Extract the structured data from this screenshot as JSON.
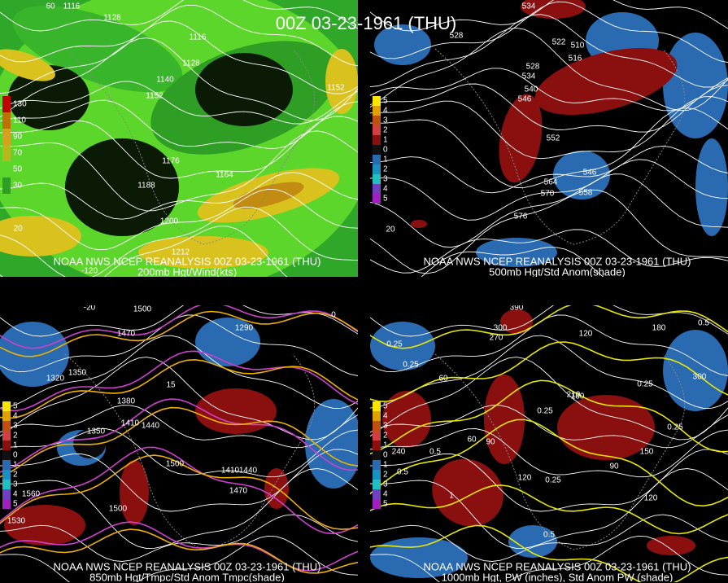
{
  "title": "00Z 03-23-1961 (THU)",
  "panels": [
    {
      "source": "NOAA NWS NCEP REANALYSIS 00Z 03-23-1961 (THU)",
      "caption": "200mb Hgt/Wind(kts)",
      "legend": [
        "130",
        "110",
        "90",
        "70",
        "50",
        "30"
      ],
      "labels": [
        "60",
        "1116",
        "1128",
        "1116",
        "1128",
        "1140",
        "1152",
        "1152",
        "1176",
        "1164",
        "1188",
        "1200",
        "1212",
        "20",
        "-120"
      ]
    },
    {
      "source": "NOAA NWS NCEP REANALYSIS 00Z 03-23-1961 (THU)",
      "caption": "500mb Hgt/Std Anom(shade)",
      "legend": [
        "5",
        "4",
        "3",
        "2",
        "1",
        "0",
        "1",
        "2",
        "3",
        "4",
        "5"
      ],
      "labels": [
        "534",
        "528",
        "522",
        "516",
        "510",
        "528",
        "534",
        "540",
        "546",
        "552",
        "546",
        "564",
        "570",
        "558",
        "576",
        "20"
      ]
    },
    {
      "source": "NOAA NWS NCEP REANALYSIS 00Z 03-23-1961 (THU)",
      "caption": "850mb Hgt/Tmpc/Std Anom Tmpc(shade)",
      "legend": [
        "5",
        "4",
        "3",
        "2",
        "1",
        "0",
        "1",
        "2",
        "3",
        "4",
        "5"
      ],
      "labels": [
        "1500",
        "1470",
        "1320",
        "1350",
        "1290",
        "1380",
        "1350",
        "1410",
        "1440",
        "1500",
        "1410",
        "1440",
        "1470",
        "1560",
        "1500",
        "1530",
        "-20",
        "0",
        "15"
      ]
    },
    {
      "source": "NOAA NWS NCEP REANALYSIS 00Z 03-23-1961 (THU)",
      "caption": "1000mb Hgt, PW (inches), Std Anom PW (shade)",
      "legend": [
        "5",
        "4",
        "3",
        "2",
        "1",
        "0",
        "1",
        "2",
        "3",
        "4",
        "5"
      ],
      "labels": [
        "390",
        "300",
        "270",
        "120",
        "0.25",
        "0.25",
        "60",
        "240",
        "0.5",
        "0.5",
        "1",
        "60",
        "90",
        "180",
        "0.25",
        "0.25",
        "210",
        "0.5",
        "150",
        "90",
        "120",
        "120",
        "0.25",
        "0.25",
        "0.5",
        "180",
        "300"
      ]
    }
  ]
}
